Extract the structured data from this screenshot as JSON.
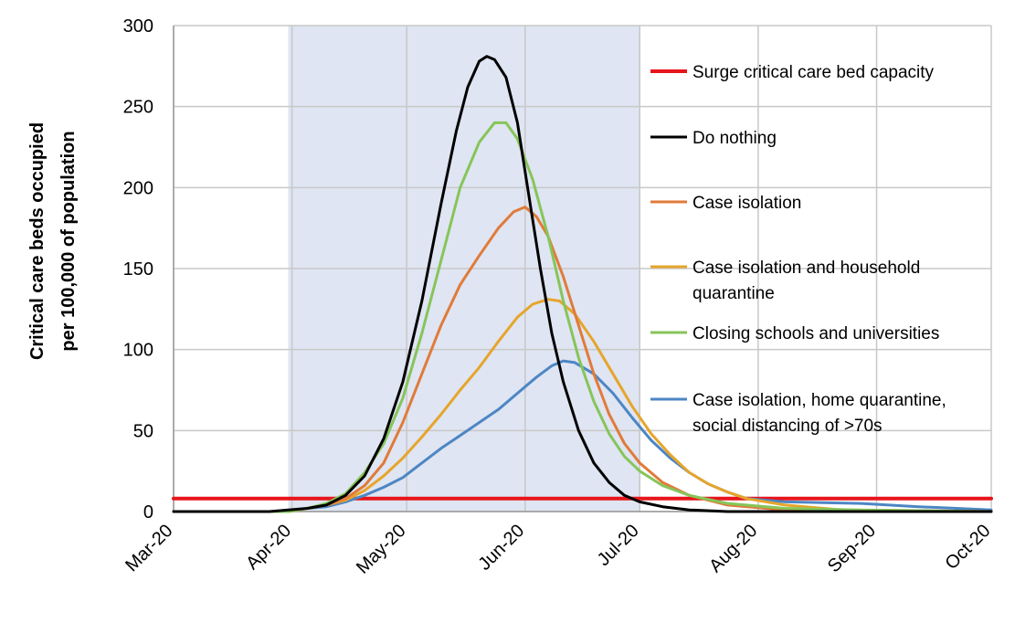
{
  "chart_data": {
    "type": "line",
    "title": "",
    "ylabel": [
      "Critical care beds occupied",
      "per 100,000 of population"
    ],
    "xlabel": "",
    "ylim": [
      0,
      300
    ],
    "yticks": [
      0,
      50,
      100,
      150,
      200,
      250,
      300
    ],
    "xticks": [
      "Mar-20",
      "Apr-20",
      "May-20",
      "Jun-20",
      "Jul-20",
      "Aug-20",
      "Sep-20",
      "Oct-20"
    ],
    "x_day_index": [
      0,
      31,
      61,
      92,
      122,
      153,
      184,
      214
    ],
    "shaded_period": [
      "2020-03-31",
      "2020-07-01"
    ],
    "grid": true,
    "legend_position": "right",
    "series": [
      {
        "name": "Surge critical care bed capacity",
        "color": "#e8141b",
        "points": [
          [
            0,
            8
          ],
          [
            214,
            8
          ]
        ]
      },
      {
        "name": "Do nothing",
        "color": "#000000",
        "points": [
          [
            0,
            0
          ],
          [
            25,
            0
          ],
          [
            30,
            1
          ],
          [
            35,
            2
          ],
          [
            40,
            4
          ],
          [
            45,
            10
          ],
          [
            50,
            22
          ],
          [
            55,
            45
          ],
          [
            60,
            80
          ],
          [
            65,
            130
          ],
          [
            70,
            190
          ],
          [
            74,
            235
          ],
          [
            77,
            262
          ],
          [
            80,
            278
          ],
          [
            82,
            281
          ],
          [
            84,
            279
          ],
          [
            87,
            268
          ],
          [
            90,
            240
          ],
          [
            93,
            195
          ],
          [
            96,
            150
          ],
          [
            99,
            110
          ],
          [
            102,
            80
          ],
          [
            106,
            50
          ],
          [
            110,
            30
          ],
          [
            114,
            18
          ],
          [
            118,
            10
          ],
          [
            122,
            6
          ],
          [
            128,
            3
          ],
          [
            135,
            1
          ],
          [
            145,
            0
          ],
          [
            214,
            0
          ]
        ]
      },
      {
        "name": "Case isolation",
        "color": "#e07b3a",
        "points": [
          [
            0,
            0
          ],
          [
            30,
            0
          ],
          [
            35,
            2
          ],
          [
            40,
            4
          ],
          [
            45,
            8
          ],
          [
            50,
            16
          ],
          [
            55,
            30
          ],
          [
            60,
            55
          ],
          [
            65,
            85
          ],
          [
            70,
            115
          ],
          [
            75,
            140
          ],
          [
            80,
            158
          ],
          [
            85,
            175
          ],
          [
            89,
            185
          ],
          [
            92,
            188
          ],
          [
            95,
            182
          ],
          [
            98,
            170
          ],
          [
            102,
            145
          ],
          [
            106,
            115
          ],
          [
            110,
            85
          ],
          [
            114,
            60
          ],
          [
            118,
            42
          ],
          [
            122,
            30
          ],
          [
            128,
            18
          ],
          [
            135,
            10
          ],
          [
            145,
            4
          ],
          [
            160,
            1
          ],
          [
            214,
            0
          ]
        ]
      },
      {
        "name": "Case isolation and household quarantine",
        "color": "#e6a52c",
        "points": [
          [
            0,
            0
          ],
          [
            30,
            0
          ],
          [
            35,
            2
          ],
          [
            40,
            4
          ],
          [
            45,
            7
          ],
          [
            50,
            13
          ],
          [
            55,
            22
          ],
          [
            60,
            33
          ],
          [
            65,
            46
          ],
          [
            70,
            60
          ],
          [
            75,
            75
          ],
          [
            80,
            89
          ],
          [
            85,
            105
          ],
          [
            90,
            120
          ],
          [
            94,
            128
          ],
          [
            98,
            131
          ],
          [
            101,
            130
          ],
          [
            105,
            122
          ],
          [
            110,
            105
          ],
          [
            115,
            85
          ],
          [
            120,
            65
          ],
          [
            125,
            48
          ],
          [
            130,
            35
          ],
          [
            135,
            24
          ],
          [
            140,
            17
          ],
          [
            145,
            12
          ],
          [
            150,
            8
          ],
          [
            160,
            4
          ],
          [
            175,
            1
          ],
          [
            214,
            0
          ]
        ]
      },
      {
        "name": "Closing schools and universities",
        "color": "#86c55a",
        "points": [
          [
            0,
            0
          ],
          [
            30,
            0
          ],
          [
            35,
            2
          ],
          [
            40,
            5
          ],
          [
            45,
            11
          ],
          [
            50,
            24
          ],
          [
            55,
            42
          ],
          [
            60,
            70
          ],
          [
            65,
            110
          ],
          [
            70,
            155
          ],
          [
            75,
            200
          ],
          [
            80,
            228
          ],
          [
            84,
            240
          ],
          [
            87,
            240
          ],
          [
            90,
            230
          ],
          [
            94,
            205
          ],
          [
            98,
            170
          ],
          [
            102,
            130
          ],
          [
            106,
            95
          ],
          [
            110,
            68
          ],
          [
            114,
            48
          ],
          [
            118,
            34
          ],
          [
            122,
            25
          ],
          [
            128,
            16
          ],
          [
            135,
            10
          ],
          [
            145,
            5
          ],
          [
            160,
            2
          ],
          [
            180,
            1
          ],
          [
            214,
            0
          ]
        ]
      },
      {
        "name": "Case isolation, home quarantine, social distancing of >70s",
        "color": "#4d86c4",
        "points": [
          [
            0,
            0
          ],
          [
            30,
            0
          ],
          [
            35,
            2
          ],
          [
            40,
            3
          ],
          [
            45,
            6
          ],
          [
            50,
            10
          ],
          [
            55,
            15
          ],
          [
            60,
            21
          ],
          [
            65,
            30
          ],
          [
            70,
            39
          ],
          [
            75,
            47
          ],
          [
            80,
            55
          ],
          [
            85,
            63
          ],
          [
            90,
            73
          ],
          [
            95,
            83
          ],
          [
            99,
            90
          ],
          [
            102,
            93
          ],
          [
            105,
            92
          ],
          [
            110,
            85
          ],
          [
            115,
            73
          ],
          [
            120,
            58
          ],
          [
            125,
            44
          ],
          [
            130,
            33
          ],
          [
            135,
            24
          ],
          [
            140,
            17
          ],
          [
            145,
            12
          ],
          [
            150,
            8
          ],
          [
            160,
            6
          ],
          [
            180,
            5
          ],
          [
            195,
            3
          ],
          [
            205,
            2
          ],
          [
            214,
            1
          ]
        ]
      }
    ],
    "legend": [
      {
        "text": [
          "Surge critical care bed capacity"
        ],
        "color": "#e8141b"
      },
      {
        "text": [
          "Do nothing"
        ],
        "color": "#000000"
      },
      {
        "text": [
          "Case isolation"
        ],
        "color": "#e07b3a"
      },
      {
        "text": [
          "Case isolation and household",
          "quarantine"
        ],
        "color": "#e6a52c"
      },
      {
        "text": [
          "Closing schools and universities"
        ],
        "color": "#86c55a"
      },
      {
        "text": [
          "Case isolation, home quarantine,",
          "social distancing of >70s"
        ],
        "color": "#4d86c4"
      }
    ]
  }
}
